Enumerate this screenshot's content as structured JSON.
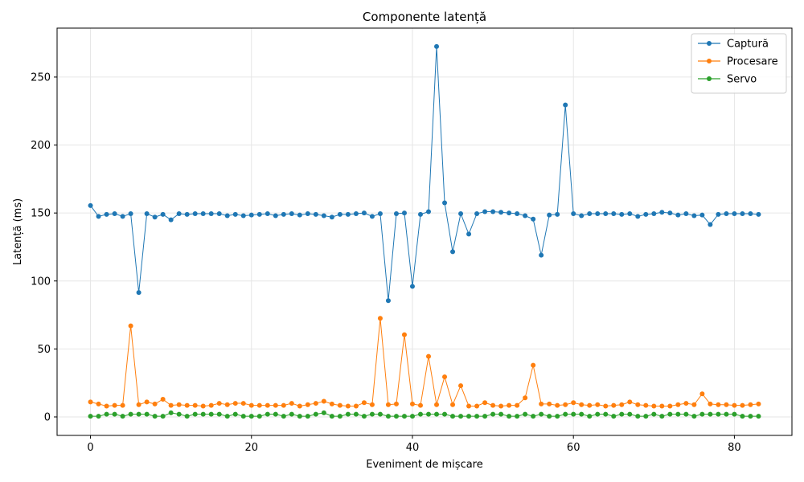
{
  "chart_data": {
    "type": "line",
    "title": "Componente latență",
    "xlabel": "Eveniment de mișcare",
    "ylabel": "Latență (ms)",
    "xlim": [
      -4.15,
      87.15
    ],
    "ylim": [
      -13.6,
      286.0
    ],
    "xticks": [
      0,
      20,
      40,
      60,
      80
    ],
    "yticks": [
      0,
      50,
      100,
      150,
      200,
      250
    ],
    "grid": true,
    "legend_position": "top-right",
    "series": [
      {
        "name": "Captură",
        "color": "#1f77b4",
        "values": [
          155.5,
          147.5,
          149,
          149.5,
          147.5,
          149.5,
          91.5,
          149.5,
          147,
          149,
          145,
          149.5,
          149,
          149.5,
          149.5,
          149.5,
          149.5,
          148,
          149,
          148,
          148.5,
          149,
          149.5,
          148,
          149,
          149.5,
          148.5,
          149.5,
          149,
          148,
          147,
          149,
          149,
          149.5,
          150,
          147.5,
          149.5,
          85.5,
          149.5,
          150,
          96,
          149,
          151,
          272.5,
          157.5,
          121.5,
          149.5,
          134.5,
          149.5,
          151,
          151,
          150.5,
          150,
          149.5,
          148,
          145.5,
          119,
          148.5,
          149,
          229.5,
          149.5,
          148,
          149.5,
          149.5,
          149.5,
          149.5,
          149,
          149.5,
          147.5,
          149,
          149.5,
          150.5,
          150,
          148.5,
          149.5,
          148,
          148.5,
          141.5,
          149,
          149.5,
          149.5,
          149.5,
          149.5,
          149
        ]
      },
      {
        "name": "Procesare",
        "color": "#ff7f0e",
        "values": [
          11,
          9.5,
          8,
          8.5,
          8.5,
          67,
          9,
          11,
          9.5,
          13,
          8.5,
          9,
          8.5,
          8.5,
          8,
          8.5,
          10,
          9,
          10,
          10,
          8.5,
          8.5,
          8.5,
          8.5,
          8.5,
          10,
          8,
          9,
          10,
          11.5,
          9.5,
          8.5,
          8,
          8,
          10.5,
          9,
          72.5,
          9,
          9.5,
          60.5,
          9.5,
          8.5,
          44.5,
          9,
          29.5,
          9,
          23,
          8,
          8,
          10.5,
          8.5,
          8,
          8.5,
          8.5,
          14,
          38,
          9.5,
          9.5,
          8.5,
          9,
          10.5,
          9,
          8.5,
          9,
          8,
          8.5,
          9,
          11,
          9,
          8.5,
          8,
          8,
          8,
          9,
          10,
          9,
          17,
          9.5,
          9,
          9,
          8.5,
          8.5,
          9,
          9.5
        ]
      },
      {
        "name": "Servo",
        "color": "#2ca02c",
        "values": [
          0.5,
          0.5,
          2,
          2,
          0.5,
          2,
          2,
          2,
          0.5,
          0.5,
          3,
          2,
          0.5,
          2,
          2,
          2,
          2,
          0.5,
          2,
          0.5,
          0.5,
          0.5,
          2,
          2,
          0.5,
          2,
          0.5,
          0.5,
          2,
          3,
          0.5,
          0.5,
          2,
          2,
          0.5,
          2,
          2,
          0.5,
          0.5,
          0.5,
          0.5,
          2,
          2,
          2,
          2,
          0.5,
          0.5,
          0.5,
          0.5,
          0.5,
          2,
          2,
          0.5,
          0.5,
          2,
          0.5,
          2,
          0.5,
          0.5,
          2,
          2,
          2,
          0.5,
          2,
          2,
          0.5,
          2,
          2,
          0.5,
          0.5,
          2,
          0.5,
          2,
          2,
          2,
          0.5,
          2,
          2,
          2,
          2,
          2,
          0.5,
          0.5,
          0.5
        ]
      }
    ]
  }
}
